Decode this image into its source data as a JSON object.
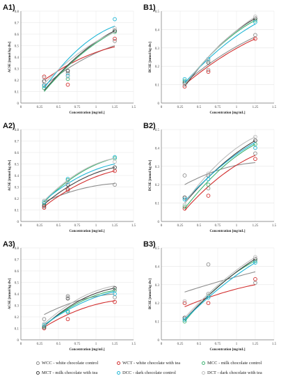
{
  "series_colors": {
    "WCC": "#8c8c8c",
    "MCT": "#404040",
    "WCT": "#d22e2e",
    "MCC": "#3cb371",
    "DCC": "#1fb6d6",
    "DCT": "#bdbdbd",
    "ORANGE": "#e8963a",
    "BLUE": "#3d6fb0",
    "GREEN": "#4a9a3a"
  },
  "legend": [
    {
      "key": "WCC",
      "label": "WCC - white chocolate control"
    },
    {
      "key": "WCT",
      "label": "WCT - white chocolate with tea"
    },
    {
      "key": "MCC",
      "label": "MCC - milk chocolate control"
    },
    {
      "key": "MCT",
      "label": "MCT - milk chocolate with tea"
    },
    {
      "key": "DCC",
      "label": "DCC - dark chocolate control"
    },
    {
      "key": "DCT",
      "label": "DCT - dark chocolate with tea"
    }
  ],
  "chart_data": [
    {
      "id": "A1",
      "panel_label": "A1)",
      "type": "scatter",
      "xlabel": "Concentration [mg/mL]",
      "ylabel": "ACSE [mmol/kg dw]",
      "xlim": [
        0,
        1.5
      ],
      "ylim": [
        0,
        0.8
      ],
      "xticks": [
        "0",
        "0.25",
        "0.5",
        "0.75",
        "1",
        "1.25",
        "1.5"
      ],
      "yticks": [
        "0",
        "0.1",
        "0.2",
        "0.3",
        "0.4",
        "0.5",
        "0.6",
        "0.7",
        "0.8"
      ],
      "x": [
        0.31,
        0.625,
        1.25
      ],
      "series": [
        {
          "key": "WCC",
          "points": [
            0.16,
            0.26,
            0.54
          ],
          "curve": [
            0.15,
            0.3,
            0.5
          ]
        },
        {
          "key": "WCT",
          "points": [
            0.23,
            0.16,
            0.56
          ],
          "curve": [
            0.2,
            0.33,
            0.49
          ]
        },
        {
          "key": "MCC",
          "points": [
            0.13,
            0.21,
            0.62
          ],
          "curve": [
            0.1,
            0.32,
            0.62
          ]
        },
        {
          "key": "MCT",
          "points": [
            0.19,
            0.28,
            0.63
          ],
          "curve": [
            0.11,
            0.33,
            0.63
          ]
        },
        {
          "key": "DCC",
          "points": [
            0.15,
            0.24,
            0.73
          ],
          "curve": [
            0.13,
            0.38,
            0.67
          ]
        },
        {
          "key": "DCT",
          "points": [
            0.22,
            0.23,
            0.65
          ],
          "curve": [
            0.17,
            0.36,
            0.62
          ]
        }
      ]
    },
    {
      "id": "B1",
      "panel_label": "B1)",
      "type": "scatter",
      "xlabel": "Concentration [mg/mL]",
      "ylabel": "BCSE [mmol/kg dw]",
      "xlim": [
        0,
        1.5
      ],
      "ylim": [
        0,
        0.5
      ],
      "xticks": [
        "0",
        "0.25",
        "0.5",
        "0.75",
        "1",
        "1.25",
        "1.5"
      ],
      "yticks": [
        "0",
        "0.1",
        "0.2",
        "0.3",
        "0.4",
        "0.5"
      ],
      "x": [
        0.31,
        0.625,
        1.25
      ],
      "series": [
        {
          "key": "WCC",
          "points": [
            0.1,
            0.18,
            0.37
          ],
          "curve": [
            0.11,
            0.21,
            0.36
          ]
        },
        {
          "key": "WCT",
          "points": [
            0.09,
            0.17,
            0.35
          ],
          "curve": [
            0.1,
            0.2,
            0.35
          ]
        },
        {
          "key": "MCC",
          "points": [
            0.12,
            0.23,
            0.45
          ],
          "curve": [
            0.1,
            0.25,
            0.45
          ]
        },
        {
          "key": "MCT",
          "points": [
            0.11,
            0.22,
            0.46
          ],
          "curve": [
            0.09,
            0.25,
            0.46
          ]
        },
        {
          "key": "DCC",
          "points": [
            0.13,
            0.24,
            0.44
          ],
          "curve": [
            0.11,
            0.24,
            0.43
          ]
        },
        {
          "key": "DCT",
          "points": [
            0.1,
            0.23,
            0.47
          ],
          "curve": [
            0.1,
            0.25,
            0.47
          ]
        }
      ]
    },
    {
      "id": "A2",
      "panel_label": "A2)",
      "type": "scatter",
      "xlabel": "Concentration [mg/mL]",
      "ylabel": "ACSE [mmol/kg dw]",
      "xlim": [
        0,
        1.5
      ],
      "ylim": [
        0,
        0.8
      ],
      "xticks": [
        "0",
        "0.25",
        "0.5",
        "0.75",
        "1",
        "1.25",
        "1.5"
      ],
      "yticks": [
        "0",
        "0.1",
        "0.2",
        "0.3",
        "0.4",
        "0.5",
        "0.6",
        "0.7",
        "0.8"
      ],
      "x": [
        0.31,
        0.625,
        1.25
      ],
      "series": [
        {
          "key": "WCC",
          "points": [
            0.13,
            0.27,
            0.32
          ],
          "curve": [
            0.17,
            0.25,
            0.33
          ]
        },
        {
          "key": "WCT",
          "points": [
            0.12,
            0.28,
            0.44
          ],
          "curve": [
            0.13,
            0.27,
            0.44
          ]
        },
        {
          "key": "MCC",
          "points": [
            0.16,
            0.36,
            0.55
          ],
          "curve": [
            0.17,
            0.35,
            0.55
          ]
        },
        {
          "key": "MCT",
          "points": [
            0.14,
            0.32,
            0.47
          ],
          "curve": [
            0.15,
            0.3,
            0.47
          ]
        },
        {
          "key": "DCC",
          "points": [
            0.17,
            0.37,
            0.56
          ],
          "curve": [
            0.18,
            0.33,
            0.5
          ]
        },
        {
          "key": "DCT",
          "points": [
            0.18,
            0.33,
            0.52
          ],
          "curve": [
            0.18,
            0.36,
            0.55
          ]
        }
      ]
    },
    {
      "id": "B2",
      "panel_label": "B2)",
      "type": "scatter",
      "xlabel": "Concentration [mg/mL]",
      "ylabel": "DCSE [mmol/kg dw]",
      "xlim": [
        0,
        1.5
      ],
      "ylim": [
        0,
        0.5
      ],
      "xticks": [
        "0",
        "0.25",
        "0.5",
        "0.75",
        "1",
        "1.25",
        "1.5"
      ],
      "yticks": [
        "0",
        "0.1",
        "0.2",
        "0.3",
        "0.4",
        "0.5"
      ],
      "x": [
        0.31,
        0.625,
        1.25
      ],
      "series": [
        {
          "key": "WCC",
          "points": [
            0.25,
            0.18,
            0.37
          ],
          "curve": [
            0.2,
            0.26,
            0.32
          ]
        },
        {
          "key": "WCT",
          "points": [
            0.07,
            0.14,
            0.34
          ],
          "curve": [
            0.06,
            0.19,
            0.36
          ]
        },
        {
          "key": "MCC",
          "points": [
            0.08,
            0.2,
            0.42
          ],
          "curve": [
            0.07,
            0.22,
            0.42
          ]
        },
        {
          "key": "MCT",
          "points": [
            0.13,
            0.25,
            0.44
          ],
          "curve": [
            0.1,
            0.24,
            0.44
          ]
        },
        {
          "key": "DCC",
          "points": [
            0.12,
            0.23,
            0.4
          ],
          "curve": [
            0.11,
            0.24,
            0.43
          ]
        },
        {
          "key": "DCT",
          "points": [
            0.09,
            0.26,
            0.46
          ],
          "curve": [
            0.1,
            0.26,
            0.46
          ]
        }
      ]
    },
    {
      "id": "A3",
      "panel_label": "A3)",
      "type": "scatter",
      "xlabel": "Concentration [mg/mL]",
      "ylabel": "ACSE [mmol/kg dw]",
      "xlim": [
        0,
        1.5
      ],
      "ylim": [
        0,
        0.8
      ],
      "xticks": [
        "0",
        "0.25",
        "0.5",
        "0.75",
        "1",
        "1.25",
        "1.5"
      ],
      "yticks": [
        "0",
        "0.1",
        "0.2",
        "0.3",
        "0.4",
        "0.5",
        "0.6",
        "0.7",
        "0.8"
      ],
      "x": [
        0.31,
        0.625,
        1.25
      ],
      "series": [
        {
          "key": "WCC",
          "points": [
            0.18,
            0.38,
            0.37
          ],
          "curve": [
            0.22,
            0.31,
            0.4
          ]
        },
        {
          "key": "WCT",
          "points": [
            0.1,
            0.18,
            0.33
          ],
          "curve": [
            0.11,
            0.22,
            0.34
          ]
        },
        {
          "key": "MCC",
          "points": [
            0.12,
            0.25,
            0.43
          ],
          "curve": [
            0.12,
            0.27,
            0.43
          ]
        },
        {
          "key": "MCT",
          "points": [
            0.11,
            0.36,
            0.45
          ],
          "curve": [
            0.12,
            0.28,
            0.45
          ]
        },
        {
          "key": "DCC",
          "points": [
            0.13,
            0.24,
            0.4
          ],
          "curve": [
            0.13,
            0.26,
            0.42
          ]
        },
        {
          "key": "DCT",
          "points": [
            0.14,
            0.37,
            0.44
          ],
          "curve": [
            0.14,
            0.3,
            0.47
          ]
        }
      ]
    },
    {
      "id": "B3",
      "panel_label": "B3)",
      "type": "scatter",
      "xlabel": "Concentration [mg/mL]",
      "ylabel": "BCSE [mmol/kg dw]",
      "xlim": [
        0,
        1.5
      ],
      "ylim": [
        0,
        0.5
      ],
      "xticks": [
        "0",
        "0.25",
        "0.5",
        "0.75",
        "1",
        "1.25",
        "1.5"
      ],
      "yticks": [
        "0",
        "0.1",
        "0.2",
        "0.3",
        "0.4",
        "0.5"
      ],
      "x": [
        0.31,
        0.625,
        1.25
      ],
      "series": [
        {
          "key": "WCC",
          "points": [
            0.11,
            0.41,
            0.31
          ],
          "curve": [
            0.26,
            0.3,
            0.37
          ]
        },
        {
          "key": "WCT",
          "points": [
            0.2,
            0.2,
            0.33
          ],
          "curve": [
            0.18,
            0.23,
            0.3
          ]
        },
        {
          "key": "MCC",
          "points": [
            0.1,
            0.24,
            0.43
          ],
          "curve": [
            0.1,
            0.24,
            0.43
          ]
        },
        {
          "key": "MCT",
          "points": [
            0.12,
            0.25,
            0.44
          ],
          "curve": [
            0.11,
            0.24,
            0.44
          ]
        },
        {
          "key": "DCC",
          "points": [
            0.11,
            0.23,
            0.42
          ],
          "curve": [
            0.11,
            0.23,
            0.42
          ]
        },
        {
          "key": "DCT",
          "points": [
            0.21,
            0.25,
            0.45
          ],
          "curve": [
            0.12,
            0.25,
            0.45
          ]
        }
      ]
    }
  ]
}
